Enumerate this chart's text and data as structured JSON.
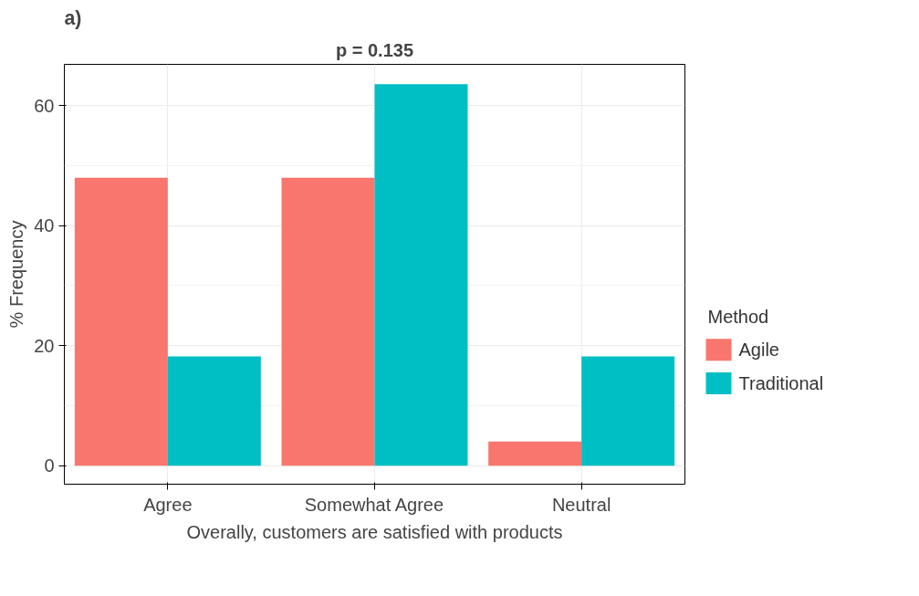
{
  "chart_data": {
    "type": "bar",
    "title": "a)",
    "xlabel": "Overally, customers are satisfied with products",
    "ylabel": "% Frequency",
    "legend_title": "Method",
    "categories": [
      "Agree",
      "Somewhat Agree",
      "Neutral"
    ],
    "series": [
      {
        "name": "Agile",
        "color": "#f8766d",
        "values": [
          48,
          48,
          4
        ]
      },
      {
        "name": "Traditional",
        "color": "#00bfc4",
        "values": [
          18.2,
          63.6,
          18.2
        ]
      }
    ],
    "ylim": [
      -3.1,
      66.9
    ],
    "yticks": [
      0,
      20,
      40,
      60
    ],
    "grid": true,
    "legend": "right",
    "annotations": [
      "p = 0.135"
    ]
  }
}
